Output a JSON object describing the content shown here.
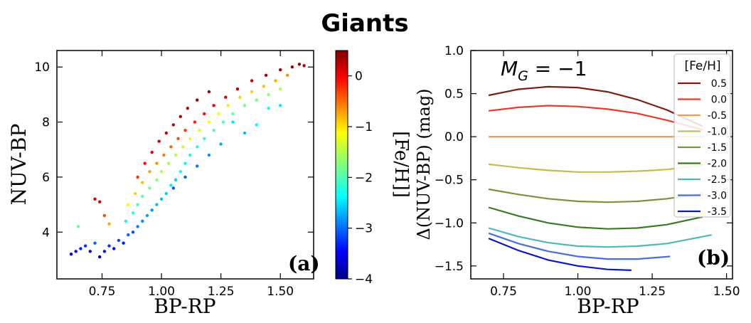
{
  "figure": {
    "title": "Giants"
  },
  "chart_data": [
    {
      "panel": "(a)",
      "type": "scatter",
      "xlabel": "BP-RP",
      "ylabel": "NUV-BP",
      "xlim": [
        0.56,
        1.64
      ],
      "ylim": [
        2.3,
        10.6
      ],
      "xticks": [
        "0.75",
        "1.00",
        "1.25",
        "1.50"
      ],
      "yticks": [
        "4",
        "6",
        "8",
        "10"
      ],
      "colorbar": {
        "label": "[Fe/H]]",
        "range": [
          -4,
          0.5
        ],
        "ticks": [
          "0",
          "−1",
          "−2",
          "−3",
          "−4"
        ],
        "colormap": "jet"
      },
      "points": [
        [
          0.62,
          3.2,
          -3.5
        ],
        [
          0.64,
          3.3,
          -3.4
        ],
        [
          0.66,
          3.4,
          -3.3
        ],
        [
          0.68,
          3.5,
          -3.2
        ],
        [
          0.7,
          3.3,
          -3.6
        ],
        [
          0.72,
          3.6,
          -3.0
        ],
        [
          0.74,
          3.1,
          -3.8
        ],
        [
          0.76,
          3.3,
          -3.4
        ],
        [
          0.78,
          3.5,
          -3.2
        ],
        [
          0.8,
          3.4,
          -3.5
        ],
        [
          0.82,
          3.7,
          -3.1
        ],
        [
          0.84,
          3.6,
          -3.3
        ],
        [
          0.86,
          3.9,
          -3.0
        ],
        [
          0.88,
          4.0,
          -3.1
        ],
        [
          0.9,
          4.2,
          -2.9
        ],
        [
          0.92,
          4.4,
          -2.8
        ],
        [
          0.94,
          4.6,
          -2.7
        ],
        [
          0.96,
          4.8,
          -2.8
        ],
        [
          0.98,
          5.0,
          -2.6
        ],
        [
          1.0,
          5.2,
          -2.6
        ],
        [
          1.02,
          5.4,
          -2.5
        ],
        [
          1.04,
          5.7,
          -2.4
        ],
        [
          1.06,
          5.9,
          -2.5
        ],
        [
          1.08,
          6.2,
          -2.3
        ],
        [
          1.1,
          6.5,
          -2.3
        ],
        [
          1.12,
          6.8,
          -2.2
        ],
        [
          1.15,
          7.1,
          -2.2
        ],
        [
          1.18,
          7.4,
          -2.1
        ],
        [
          1.22,
          7.7,
          -2.0
        ],
        [
          1.26,
          8.0,
          -2.0
        ],
        [
          1.3,
          8.3,
          -1.9
        ],
        [
          1.35,
          8.6,
          -1.8
        ],
        [
          1.4,
          8.8,
          -1.8
        ],
        [
          1.45,
          9.0,
          -1.7
        ],
        [
          1.5,
          9.2,
          -1.6
        ],
        [
          0.85,
          4.4,
          -2.3
        ],
        [
          0.88,
          4.7,
          -2.1
        ],
        [
          0.9,
          5.0,
          -2.0
        ],
        [
          0.92,
          5.3,
          -1.9
        ],
        [
          0.95,
          5.6,
          -1.8
        ],
        [
          0.98,
          5.9,
          -1.7
        ],
        [
          1.0,
          6.2,
          -1.6
        ],
        [
          1.03,
          6.5,
          -1.6
        ],
        [
          1.06,
          6.8,
          -1.5
        ],
        [
          1.09,
          7.1,
          -1.4
        ],
        [
          1.12,
          7.4,
          -1.3
        ],
        [
          1.16,
          7.7,
          -1.3
        ],
        [
          1.2,
          8.0,
          -1.2
        ],
        [
          1.24,
          8.3,
          -1.2
        ],
        [
          1.28,
          8.6,
          -1.1
        ],
        [
          1.33,
          8.9,
          -1.0
        ],
        [
          1.38,
          9.1,
          -1.0
        ],
        [
          1.43,
          9.3,
          -0.9
        ],
        [
          1.48,
          9.5,
          -0.8
        ],
        [
          1.53,
          9.7,
          -0.7
        ],
        [
          0.86,
          5.0,
          -1.2
        ],
        [
          0.89,
          5.4,
          -1.0
        ],
        [
          0.92,
          5.8,
          -0.9
        ],
        [
          0.95,
          6.2,
          -0.8
        ],
        [
          0.98,
          6.5,
          -0.7
        ],
        [
          1.01,
          6.8,
          -0.6
        ],
        [
          1.04,
          7.1,
          -0.5
        ],
        [
          1.07,
          7.4,
          -0.4
        ],
        [
          1.1,
          7.7,
          -0.3
        ],
        [
          1.14,
          8.0,
          -0.2
        ],
        [
          1.18,
          8.3,
          -0.1
        ],
        [
          1.22,
          8.6,
          0.0
        ],
        [
          1.27,
          8.9,
          0.1
        ],
        [
          1.32,
          9.2,
          0.2
        ],
        [
          1.38,
          9.5,
          0.2
        ],
        [
          1.44,
          9.7,
          0.3
        ],
        [
          1.5,
          9.9,
          0.3
        ],
        [
          1.55,
          10.0,
          0.4
        ],
        [
          1.58,
          10.1,
          0.4
        ],
        [
          1.6,
          10.05,
          0.3
        ],
        [
          0.9,
          6.0,
          -0.3
        ],
        [
          0.93,
          6.5,
          -0.1
        ],
        [
          0.96,
          6.9,
          0.0
        ],
        [
          0.99,
          7.3,
          0.1
        ],
        [
          1.02,
          7.6,
          0.2
        ],
        [
          1.05,
          7.9,
          0.2
        ],
        [
          1.08,
          8.2,
          0.3
        ],
        [
          1.11,
          8.5,
          0.3
        ],
        [
          1.15,
          8.8,
          0.4
        ],
        [
          1.2,
          9.1,
          0.4
        ],
        [
          0.72,
          5.2,
          0.2
        ],
        [
          0.74,
          5.1,
          0.1
        ],
        [
          0.76,
          4.6,
          -0.4
        ],
        [
          0.78,
          4.3,
          -0.8
        ],
        [
          0.65,
          4.2,
          -1.9
        ],
        [
          1.3,
          8.0,
          -2.4
        ],
        [
          1.35,
          7.6,
          -2.6
        ],
        [
          1.4,
          7.9,
          -2.3
        ],
        [
          1.45,
          8.5,
          -2.2
        ],
        [
          1.5,
          8.6,
          -2.4
        ],
        [
          1.25,
          7.2,
          -2.7
        ],
        [
          1.2,
          6.8,
          -2.8
        ],
        [
          1.15,
          6.4,
          -2.9
        ],
        [
          1.1,
          6.0,
          -3.0
        ],
        [
          1.05,
          5.6,
          -3.1
        ]
      ]
    },
    {
      "panel": "(b)",
      "type": "line",
      "xlabel": "BP-RP",
      "ylabel": "Δ(NUV-BP) (mag)",
      "xlim": [
        0.64,
        1.52
      ],
      "ylim": [
        -1.65,
        1.0
      ],
      "xticks": [
        "0.75",
        "1.00",
        "1.25",
        "1.50"
      ],
      "yticks": [
        "1.0",
        "0.5",
        "0.0",
        "−0.5",
        "−1.0",
        "−1.5"
      ],
      "annotation": "M_G = −1",
      "legend": {
        "title": "[Fe/H]",
        "placement": "top-right"
      },
      "series": [
        {
          "name": "0.5",
          "color": "#7f1d14",
          "x": [
            0.7,
            0.8,
            0.9,
            1.0,
            1.1,
            1.2,
            1.3,
            1.42
          ],
          "y": [
            0.48,
            0.55,
            0.58,
            0.57,
            0.52,
            0.43,
            0.31,
            0.12
          ]
        },
        {
          "name": "0.0",
          "color": "#e83a2b",
          "x": [
            0.7,
            0.8,
            0.9,
            1.0,
            1.1,
            1.2,
            1.3,
            1.42
          ],
          "y": [
            0.3,
            0.34,
            0.36,
            0.35,
            0.32,
            0.27,
            0.19,
            0.08
          ]
        },
        {
          "name": "-0.5",
          "color": "#f39c4c",
          "x": [
            0.7,
            0.8,
            0.9,
            1.0,
            1.1,
            1.2,
            1.3,
            1.42
          ],
          "y": [
            0.0,
            0.0,
            0.0,
            0.0,
            0.0,
            0.0,
            0.0,
            0.0
          ]
        },
        {
          "name": "-1.0",
          "color": "#c2bf48",
          "x": [
            0.7,
            0.8,
            0.9,
            1.0,
            1.1,
            1.2,
            1.3,
            1.42
          ],
          "y": [
            -0.32,
            -0.36,
            -0.39,
            -0.41,
            -0.41,
            -0.4,
            -0.38,
            -0.33
          ]
        },
        {
          "name": "-1.5",
          "color": "#7f8f3a",
          "x": [
            0.7,
            0.8,
            0.9,
            1.0,
            1.1,
            1.2,
            1.3,
            1.42
          ],
          "y": [
            -0.61,
            -0.67,
            -0.72,
            -0.75,
            -0.76,
            -0.75,
            -0.72,
            -0.66
          ]
        },
        {
          "name": "-2.0",
          "color": "#3b7a1f",
          "x": [
            0.7,
            0.8,
            0.9,
            1.0,
            1.1,
            1.2,
            1.3,
            1.42
          ],
          "y": [
            -0.82,
            -0.92,
            -1.0,
            -1.05,
            -1.07,
            -1.06,
            -1.02,
            -0.93
          ]
        },
        {
          "name": "-2.5",
          "color": "#4fb8b8",
          "x": [
            0.7,
            0.8,
            0.9,
            1.0,
            1.1,
            1.2,
            1.3,
            1.45
          ],
          "y": [
            -1.06,
            -1.16,
            -1.23,
            -1.27,
            -1.28,
            -1.27,
            -1.24,
            -1.14
          ]
        },
        {
          "name": "-3.0",
          "color": "#4a6fd6",
          "x": [
            0.7,
            0.8,
            0.9,
            1.0,
            1.1,
            1.2,
            1.31
          ],
          "y": [
            -1.12,
            -1.24,
            -1.33,
            -1.39,
            -1.42,
            -1.42,
            -1.39
          ]
        },
        {
          "name": "-3.5",
          "color": "#0a17c8",
          "x": [
            0.7,
            0.8,
            0.9,
            1.0,
            1.1,
            1.18
          ],
          "y": [
            -1.18,
            -1.32,
            -1.43,
            -1.5,
            -1.54,
            -1.55
          ]
        }
      ]
    }
  ]
}
